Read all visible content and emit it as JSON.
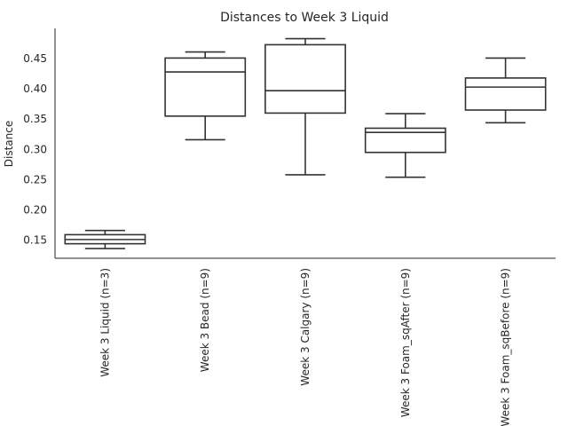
{
  "chart_data": {
    "type": "box",
    "title": "Distances to Week 3 Liquid",
    "xlabel": "",
    "ylabel": "Distance",
    "ylim": [
      0.12,
      0.5
    ],
    "yticks": [
      0.15,
      0.2,
      0.25,
      0.3,
      0.35,
      0.4,
      0.45
    ],
    "ytick_labels": [
      "0.15",
      "0.20",
      "0.25",
      "0.30",
      "0.35",
      "0.40",
      "0.45"
    ],
    "grid": false,
    "categories": [
      "Week 3 Liquid (n=3)",
      "Week 3 Bead (n=9)",
      "Week 3 Calgary (n=9)",
      "Week 3 Foam_sqAfter (n=9)",
      "Week 3 Foam_sqBefore (n=9)"
    ],
    "boxes": [
      {
        "whisker_low": 0.136,
        "q1": 0.144,
        "median": 0.151,
        "q3": 0.159,
        "whisker_high": 0.166
      },
      {
        "whisker_low": 0.316,
        "q1": 0.355,
        "median": 0.428,
        "q3": 0.451,
        "whisker_high": 0.461
      },
      {
        "whisker_low": 0.258,
        "q1": 0.36,
        "median": 0.397,
        "q3": 0.473,
        "whisker_high": 0.483
      },
      {
        "whisker_low": 0.254,
        "q1": 0.295,
        "median": 0.328,
        "q3": 0.335,
        "whisker_high": 0.359
      },
      {
        "whisker_low": 0.344,
        "q1": 0.365,
        "median": 0.403,
        "q3": 0.418,
        "whisker_high": 0.451
      }
    ],
    "colors": {
      "box_edge": "#333333",
      "box_fill": "#ffffff",
      "text": "#262626"
    }
  }
}
